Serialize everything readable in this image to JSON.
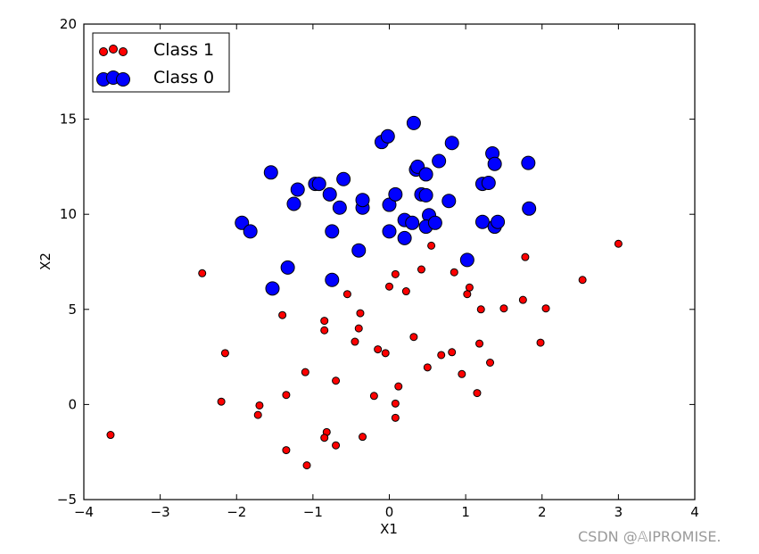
{
  "watermark": "CSDN @𝔸IPROMISE.",
  "chart_data": {
    "type": "scatter",
    "xlabel": "X1",
    "ylabel": "X2",
    "xlim": [
      -4,
      4
    ],
    "ylim": [
      -5,
      20
    ],
    "xticks": [
      "−4",
      "−3",
      "−2",
      "−1",
      "0",
      "1",
      "2",
      "3",
      "4"
    ],
    "yticks": [
      "−5",
      "0",
      "5",
      "10",
      "15",
      "20"
    ],
    "legend_position": "top-left",
    "grid": false,
    "series": [
      {
        "name": "Class 1",
        "color": "#ff0000",
        "marker": "small-circle",
        "points": [
          [
            -3.65,
            -1.6
          ],
          [
            -2.45,
            6.9
          ],
          [
            -2.15,
            2.7
          ],
          [
            -2.2,
            0.15
          ],
          [
            -1.7,
            -0.05
          ],
          [
            -1.72,
            -0.55
          ],
          [
            -1.4,
            4.7
          ],
          [
            -1.35,
            0.5
          ],
          [
            -1.35,
            -2.4
          ],
          [
            -1.1,
            1.7
          ],
          [
            -1.08,
            -3.2
          ],
          [
            -0.85,
            4.4
          ],
          [
            -0.85,
            3.9
          ],
          [
            -0.82,
            -1.45
          ],
          [
            -0.85,
            -1.75
          ],
          [
            -0.7,
            1.25
          ],
          [
            -0.7,
            -2.15
          ],
          [
            -0.55,
            5.8
          ],
          [
            -0.45,
            3.3
          ],
          [
            -0.4,
            4.0
          ],
          [
            -0.38,
            4.8
          ],
          [
            -0.35,
            -1.7
          ],
          [
            -0.2,
            0.45
          ],
          [
            -0.15,
            2.9
          ],
          [
            -0.05,
            2.7
          ],
          [
            0.0,
            6.2
          ],
          [
            0.08,
            6.85
          ],
          [
            0.08,
            0.05
          ],
          [
            0.08,
            -0.7
          ],
          [
            0.12,
            0.95
          ],
          [
            0.22,
            5.95
          ],
          [
            0.32,
            3.55
          ],
          [
            0.42,
            7.1
          ],
          [
            0.5,
            1.95
          ],
          [
            0.55,
            8.35
          ],
          [
            0.68,
            2.6
          ],
          [
            0.82,
            2.75
          ],
          [
            0.85,
            6.95
          ],
          [
            0.95,
            1.6
          ],
          [
            1.02,
            5.8
          ],
          [
            1.05,
            6.15
          ],
          [
            1.15,
            0.6
          ],
          [
            1.18,
            3.2
          ],
          [
            1.2,
            5.0
          ],
          [
            1.32,
            2.2
          ],
          [
            1.5,
            5.05
          ],
          [
            1.75,
            5.5
          ],
          [
            1.78,
            7.75
          ],
          [
            1.98,
            3.25
          ],
          [
            2.05,
            5.05
          ],
          [
            2.53,
            6.55
          ],
          [
            3.0,
            8.45
          ]
        ]
      },
      {
        "name": "Class 0",
        "color": "#0000ff",
        "marker": "large-circle",
        "points": [
          [
            -1.93,
            9.55
          ],
          [
            -1.82,
            9.1
          ],
          [
            -1.55,
            12.2
          ],
          [
            -1.53,
            6.1
          ],
          [
            -1.33,
            7.2
          ],
          [
            -1.25,
            10.55
          ],
          [
            -1.2,
            11.3
          ],
          [
            -0.97,
            11.6
          ],
          [
            -0.92,
            11.6
          ],
          [
            -0.78,
            11.05
          ],
          [
            -0.75,
            9.1
          ],
          [
            -0.75,
            6.55
          ],
          [
            -0.65,
            10.35
          ],
          [
            -0.6,
            11.85
          ],
          [
            -0.4,
            8.1
          ],
          [
            -0.35,
            10.35
          ],
          [
            -0.35,
            10.75
          ],
          [
            -0.1,
            13.8
          ],
          [
            -0.02,
            14.1
          ],
          [
            0.0,
            10.5
          ],
          [
            0.0,
            9.1
          ],
          [
            0.08,
            11.05
          ],
          [
            0.2,
            9.7
          ],
          [
            0.2,
            8.75
          ],
          [
            0.3,
            9.55
          ],
          [
            0.32,
            14.8
          ],
          [
            0.35,
            12.35
          ],
          [
            0.37,
            12.5
          ],
          [
            0.42,
            11.05
          ],
          [
            0.48,
            12.1
          ],
          [
            0.48,
            11.0
          ],
          [
            0.52,
            9.95
          ],
          [
            0.48,
            9.35
          ],
          [
            0.6,
            9.55
          ],
          [
            0.65,
            12.8
          ],
          [
            0.78,
            10.7
          ],
          [
            0.82,
            13.75
          ],
          [
            1.02,
            7.6
          ],
          [
            1.22,
            11.6
          ],
          [
            1.3,
            11.65
          ],
          [
            1.22,
            9.6
          ],
          [
            1.35,
            13.2
          ],
          [
            1.38,
            12.65
          ],
          [
            1.38,
            9.35
          ],
          [
            1.42,
            9.6
          ],
          [
            1.82,
            12.7
          ],
          [
            1.83,
            10.3
          ]
        ]
      }
    ]
  }
}
